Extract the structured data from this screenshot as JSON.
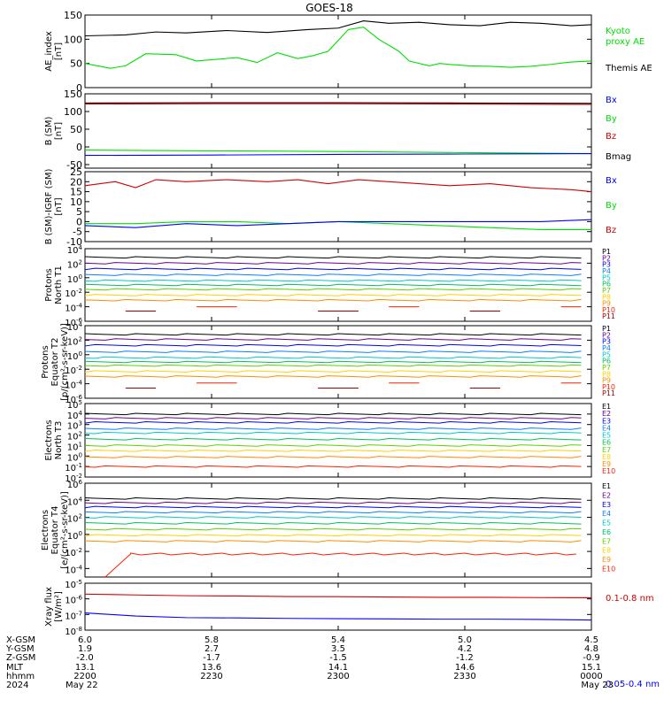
{
  "title": "GOES-18",
  "colors": {
    "black": "#000000",
    "green": "#00e000",
    "blue": "#0000ff",
    "red": "#d00000",
    "darkred": "#a00000",
    "teal": "#008080",
    "channels": [
      "#000000",
      "#6a0090",
      "#0000ff",
      "#0a7fff",
      "#00c8c8",
      "#00c060",
      "#60d000",
      "#ffd000",
      "#ff8c00",
      "#ff2000",
      "#a00000"
    ]
  },
  "chart_data": [
    {
      "type": "line",
      "id": "ae",
      "ylabel": [
        "AE_index",
        "[nT]"
      ],
      "ylim": [
        0,
        150
      ],
      "yticks": [
        "0",
        "50",
        "100",
        "150"
      ],
      "legend": [
        {
          "name": "Kyoto",
          "color": "green"
        },
        {
          "name": "proxy AE",
          "color": "green"
        },
        {
          "name": "Themis AE",
          "color": "black"
        }
      ],
      "series": [
        {
          "name": "Kyoto proxy AE",
          "color": "green",
          "x": [
            0,
            5,
            8,
            12,
            18,
            22,
            30,
            34,
            38,
            42,
            45,
            48,
            52,
            55,
            58,
            62,
            64,
            68,
            70,
            72,
            76,
            80,
            84,
            88,
            92,
            96,
            100
          ],
          "y": [
            50,
            40,
            45,
            70,
            68,
            55,
            62,
            52,
            72,
            60,
            66,
            75,
            120,
            125,
            100,
            75,
            55,
            45,
            50,
            48,
            45,
            44,
            42,
            44,
            48,
            53,
            55
          ]
        },
        {
          "name": "Themis AE",
          "color": "black",
          "x": [
            0,
            8,
            14,
            20,
            28,
            36,
            44,
            50,
            55,
            60,
            66,
            72,
            78,
            84,
            90,
            96,
            100
          ],
          "y": [
            107,
            109,
            115,
            113,
            118,
            114,
            120,
            123,
            138,
            133,
            135,
            130,
            128,
            135,
            133,
            128,
            130
          ]
        }
      ]
    },
    {
      "type": "line",
      "id": "bsm",
      "ylabel": [
        "B (SM)",
        "[nT]"
      ],
      "ylim": [
        -60,
        150
      ],
      "yticks": [
        "-50",
        "0",
        "50",
        "100",
        "150"
      ],
      "legend": [
        {
          "name": "Bx",
          "color": "blue"
        },
        {
          "name": "By",
          "color": "green"
        },
        {
          "name": "Bz",
          "color": "red"
        },
        {
          "name": "Bmag",
          "color": "black"
        }
      ],
      "series": [
        {
          "name": "Bz",
          "color": "red",
          "x": [
            0,
            25,
            50,
            75,
            100
          ],
          "y": [
            121,
            122,
            122,
            121,
            120
          ]
        },
        {
          "name": "Bmag",
          "color": "black",
          "x": [
            0,
            25,
            50,
            75,
            100
          ],
          "y": [
            124,
            125,
            125,
            124,
            123
          ]
        },
        {
          "name": "By",
          "color": "green",
          "x": [
            0,
            25,
            50,
            75,
            100
          ],
          "y": [
            -9,
            -11,
            -13,
            -16,
            -19
          ]
        },
        {
          "name": "Bx",
          "color": "blue",
          "x": [
            0,
            25,
            50,
            75,
            100
          ],
          "y": [
            -24,
            -23,
            -21,
            -20,
            -19
          ]
        }
      ]
    },
    {
      "type": "line",
      "id": "bigrf",
      "ylabel": [
        "B (SM)-IGRF (SM)",
        "[nT]"
      ],
      "ylim": [
        -10,
        25
      ],
      "yticks": [
        "-10",
        "-5",
        "0",
        "5",
        "10",
        "15",
        "20",
        "25"
      ],
      "legend": [
        {
          "name": "Bx",
          "color": "blue"
        },
        {
          "name": "By",
          "color": "green"
        },
        {
          "name": "Bz",
          "color": "red"
        }
      ],
      "series": [
        {
          "name": "Bz",
          "color": "red",
          "x": [
            0,
            6,
            10,
            14,
            20,
            28,
            36,
            42,
            48,
            54,
            60,
            66,
            72,
            80,
            88,
            96,
            100
          ],
          "y": [
            18,
            20,
            17,
            21,
            20,
            21,
            20,
            21,
            19,
            21,
            20,
            19,
            18,
            19,
            17,
            16,
            15
          ]
        },
        {
          "name": "By",
          "color": "green",
          "x": [
            0,
            10,
            20,
            30,
            40,
            50,
            60,
            70,
            80,
            90,
            100
          ],
          "y": [
            -1,
            -1,
            0,
            0,
            -1,
            0,
            -1,
            -2,
            -3,
            -4,
            -4
          ]
        },
        {
          "name": "Bx",
          "color": "blue",
          "x": [
            0,
            10,
            20,
            30,
            40,
            50,
            60,
            70,
            80,
            90,
            100
          ],
          "y": [
            -2,
            -3,
            -1,
            -2,
            -1,
            0,
            0,
            0,
            0,
            0,
            1
          ]
        }
      ]
    },
    {
      "type": "line",
      "id": "prot_t1",
      "yscale": "log",
      "ylabel": [
        "Protons",
        "North T1"
      ],
      "ylim_exp": [
        -6,
        4
      ],
      "ytick_exps": [
        -6,
        -4,
        -2,
        0,
        2,
        4
      ],
      "ytick_labels": [
        "10^-6",
        "10^-4",
        "10^-2",
        "10^0",
        "10^2",
        "10^4"
      ],
      "channel_labels": [
        "P1",
        "P2",
        "P3",
        "P4",
        "P5",
        "P6",
        "P7",
        "P8",
        "P9",
        "P10",
        "P11"
      ],
      "series": [
        {
          "name": "P1",
          "log_y": 2.8
        },
        {
          "name": "P2",
          "log_y": 2.0
        },
        {
          "name": "P3",
          "log_y": 1.2
        },
        {
          "name": "P4",
          "log_y": 0.4
        },
        {
          "name": "P5",
          "log_y": -0.4
        },
        {
          "name": "P6",
          "log_y": -1.0
        },
        {
          "name": "P7",
          "log_y": -1.6
        },
        {
          "name": "P8",
          "log_y": -2.4
        },
        {
          "name": "P9",
          "log_y": -3.1
        },
        {
          "name": "P10",
          "log_y": -4.0,
          "sparse": true
        },
        {
          "name": "P11",
          "log_y": -4.6,
          "sparse": true
        }
      ]
    },
    {
      "type": "line",
      "id": "prot_t2",
      "yscale": "log",
      "ylabel": [
        "Protons",
        "Equator T2",
        "[p/(cm²-s-sr-keV)]"
      ],
      "ylim_exp": [
        -6,
        4
      ],
      "ytick_exps": [
        -6,
        -4,
        -2,
        0,
        2,
        4
      ],
      "ytick_labels": [
        "10^-6",
        "10^-4",
        "10^-2",
        "10^0",
        "10^2",
        "10^4"
      ],
      "channel_labels": [
        "P1",
        "P2",
        "P3",
        "P4",
        "P5",
        "P6",
        "P7",
        "P8",
        "P9",
        "P10",
        "P11"
      ],
      "series": [
        {
          "name": "P1",
          "log_y": 2.8
        },
        {
          "name": "P2",
          "log_y": 2.1
        },
        {
          "name": "P3",
          "log_y": 1.3
        },
        {
          "name": "P4",
          "log_y": 0.4
        },
        {
          "name": "P5",
          "log_y": -0.4
        },
        {
          "name": "P6",
          "log_y": -1.0
        },
        {
          "name": "P7",
          "log_y": -1.5
        },
        {
          "name": "P8",
          "log_y": -2.3
        },
        {
          "name": "P9",
          "log_y": -3.0
        },
        {
          "name": "P10",
          "log_y": -3.9,
          "sparse": true
        },
        {
          "name": "P11",
          "log_y": -4.6,
          "sparse": true
        }
      ]
    },
    {
      "type": "line",
      "id": "elec_t3",
      "yscale": "log",
      "ylabel": [
        "Electrons",
        "North T3"
      ],
      "ylim_exp": [
        -2,
        5
      ],
      "ytick_exps": [
        -2,
        -1,
        0,
        1,
        2,
        3,
        4,
        5
      ],
      "ytick_labels": [
        "10^-2",
        "10^-1",
        "10^0",
        "10^1",
        "10^2",
        "10^3",
        "10^4",
        "10^5"
      ],
      "channel_labels": [
        "E1",
        "E2",
        "E3",
        "E4",
        "E5",
        "E6",
        "E7",
        "E8",
        "E9",
        "E10"
      ],
      "series": [
        {
          "name": "E1",
          "log_y": 4.0
        },
        {
          "name": "E2",
          "log_y": 3.6
        },
        {
          "name": "E3",
          "log_y": 3.2
        },
        {
          "name": "E4",
          "log_y": 2.6
        },
        {
          "name": "E5",
          "log_y": 2.2
        },
        {
          "name": "E6",
          "log_y": 1.6
        },
        {
          "name": "E7",
          "log_y": 1.0
        },
        {
          "name": "E8",
          "log_y": 0.5
        },
        {
          "name": "E9",
          "log_y": -0.1
        },
        {
          "name": "E10",
          "log_y": -1.0
        }
      ]
    },
    {
      "type": "line",
      "id": "elec_t4",
      "yscale": "log",
      "ylabel": [
        "Electrons",
        "Equator T4",
        "[e/(cm²-s-sr-keV)]"
      ],
      "ylim_exp": [
        -5,
        6
      ],
      "ytick_exps": [
        -4,
        -2,
        0,
        2,
        4,
        6
      ],
      "ytick_labels": [
        "10^-4",
        "10^-2",
        "10^0",
        "10^2",
        "10^4",
        "10^6"
      ],
      "channel_labels": [
        "E1",
        "E2",
        "E3",
        "E4",
        "E5",
        "E6",
        "E7",
        "E8",
        "E9",
        "E10"
      ],
      "series": [
        {
          "name": "E1",
          "log_y": 4.2
        },
        {
          "name": "E2",
          "log_y": 3.7
        },
        {
          "name": "E3",
          "log_y": 3.2
        },
        {
          "name": "E4",
          "log_y": 2.6
        },
        {
          "name": "E5",
          "log_y": 2.0
        },
        {
          "name": "E6",
          "log_y": 1.3
        },
        {
          "name": "E7",
          "log_y": 0.6
        },
        {
          "name": "E8",
          "log_y": -0.1
        },
        {
          "name": "E9",
          "log_y": -0.8
        },
        {
          "name": "E10",
          "log_y": -2.3,
          "ramp_from": -5
        }
      ]
    },
    {
      "type": "line",
      "id": "xray",
      "yscale": "log",
      "ylabel": [
        "Xray flux",
        "[W/m²]"
      ],
      "ylim_exp": [
        -8,
        -5
      ],
      "ytick_exps": [
        -8,
        -7,
        -6,
        -5
      ],
      "ytick_labels": [
        "10^-8",
        "10^-7",
        "10^-6",
        "10^-5"
      ],
      "legend": [
        {
          "name": "0.1-0.8 nm",
          "color": "red"
        },
        {
          "name": "0.05-0.4 nm",
          "color": "blue"
        }
      ],
      "series": [
        {
          "name": "0.1-0.8 nm",
          "color": "red",
          "x": [
            0,
            10,
            20,
            30,
            40,
            50,
            60,
            70,
            80,
            90,
            100
          ],
          "log_y": [
            -5.7,
            -5.75,
            -5.8,
            -5.82,
            -5.85,
            -5.86,
            -5.88,
            -5.9,
            -5.9,
            -5.92,
            -5.93
          ]
        },
        {
          "name": "0.05-0.4 nm",
          "color": "blue",
          "x": [
            0,
            5,
            10,
            20,
            30,
            40,
            50,
            60,
            70,
            80,
            90,
            100
          ],
          "log_y": [
            -6.9,
            -7.0,
            -7.1,
            -7.2,
            -7.22,
            -7.25,
            -7.27,
            -7.28,
            -7.3,
            -7.3,
            -7.32,
            -7.35
          ]
        }
      ]
    }
  ],
  "axis_table": {
    "rows": [
      {
        "label": "X-GSM",
        "values": [
          "6.0",
          "5.8",
          "5.4",
          "5.0",
          "4.5"
        ]
      },
      {
        "label": "Y-GSM",
        "values": [
          "1.9",
          "2.7",
          "3.5",
          "4.2",
          "4.8"
        ]
      },
      {
        "label": "Z-GSM",
        "values": [
          "-2.0",
          "-1.7",
          "-1.5",
          "-1.2",
          "-0.9"
        ]
      },
      {
        "label": "MLT",
        "values": [
          "13.1",
          "13.6",
          "14.1",
          "14.6",
          "15.1"
        ]
      },
      {
        "label": "hhmm",
        "values": [
          "2200",
          "2230",
          "2300",
          "2330",
          "0000"
        ]
      },
      {
        "label": "2024",
        "values": [
          "May 22",
          "",
          "",
          "",
          "May 23"
        ]
      }
    ]
  }
}
